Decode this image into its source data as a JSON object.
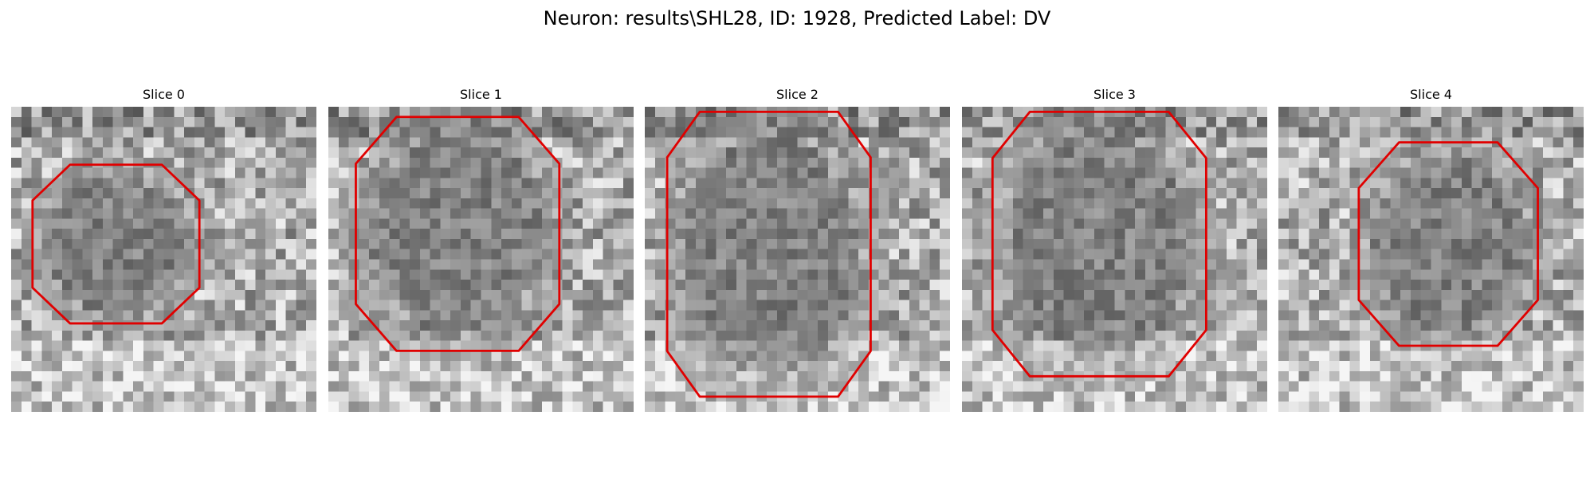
{
  "suptitle": "Neuron: results\\SHL28, ID: 1928, Predicted Label: DV",
  "panels": [
    {
      "title": "Slice 0"
    },
    {
      "title": "Slice 1"
    },
    {
      "title": "Slice 2"
    },
    {
      "title": "Slice 3"
    },
    {
      "title": "Slice 4"
    }
  ],
  "colors": {
    "contour": "#e00000",
    "colormap": "gray"
  }
}
